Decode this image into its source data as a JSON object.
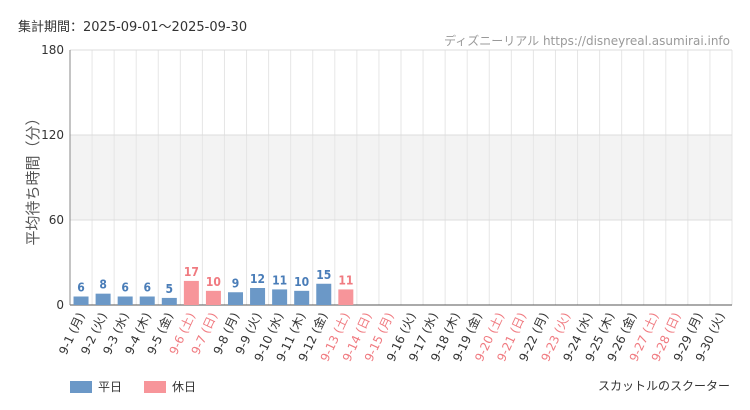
{
  "header": {
    "period_label": "集計期間：2025-09-01～2025-09-30",
    "source_label": "ディズニーリアル https://disneyreal.asumirai.info"
  },
  "footer": {
    "attraction": "スカットルのスクーター"
  },
  "colors": {
    "weekday": "#6b98c7",
    "holiday": "#f7959a",
    "weekday_text": "#4a7db8",
    "holiday_text": "#f07a80"
  },
  "chart_data": {
    "type": "bar",
    "ylabel": "平均待ち時間（分）",
    "ylim": [
      0,
      180
    ],
    "yticks": [
      0,
      60,
      120,
      180
    ],
    "shaded_band": [
      60,
      120
    ],
    "legend": [
      {
        "name": "平日",
        "kind": "weekday"
      },
      {
        "name": "休日",
        "kind": "holiday"
      }
    ],
    "categories": [
      "9-1 (月)",
      "9-2 (火)",
      "9-3 (水)",
      "9-4 (木)",
      "9-5 (金)",
      "9-6 (土)",
      "9-7 (日)",
      "9-8 (月)",
      "9-9 (火)",
      "9-10 (水)",
      "9-11 (木)",
      "9-12 (金)",
      "9-13 (土)",
      "9-14 (日)",
      "9-15 (月)",
      "9-16 (火)",
      "9-17 (水)",
      "9-18 (木)",
      "9-19 (金)",
      "9-20 (土)",
      "9-21 (日)",
      "9-22 (月)",
      "9-23 (火)",
      "9-24 (水)",
      "9-25 (木)",
      "9-26 (金)",
      "9-27 (土)",
      "9-28 (日)",
      "9-29 (月)",
      "9-30 (火)"
    ],
    "holiday": [
      false,
      false,
      false,
      false,
      false,
      true,
      true,
      false,
      false,
      false,
      false,
      false,
      true,
      true,
      true,
      false,
      false,
      false,
      false,
      true,
      true,
      false,
      true,
      false,
      false,
      false,
      true,
      true,
      false,
      false
    ],
    "values": [
      6,
      8,
      6,
      6,
      5,
      17,
      10,
      9,
      12,
      11,
      10,
      15,
      11,
      null,
      null,
      null,
      null,
      null,
      null,
      null,
      null,
      null,
      null,
      null,
      null,
      null,
      null,
      null,
      null,
      null
    ]
  }
}
